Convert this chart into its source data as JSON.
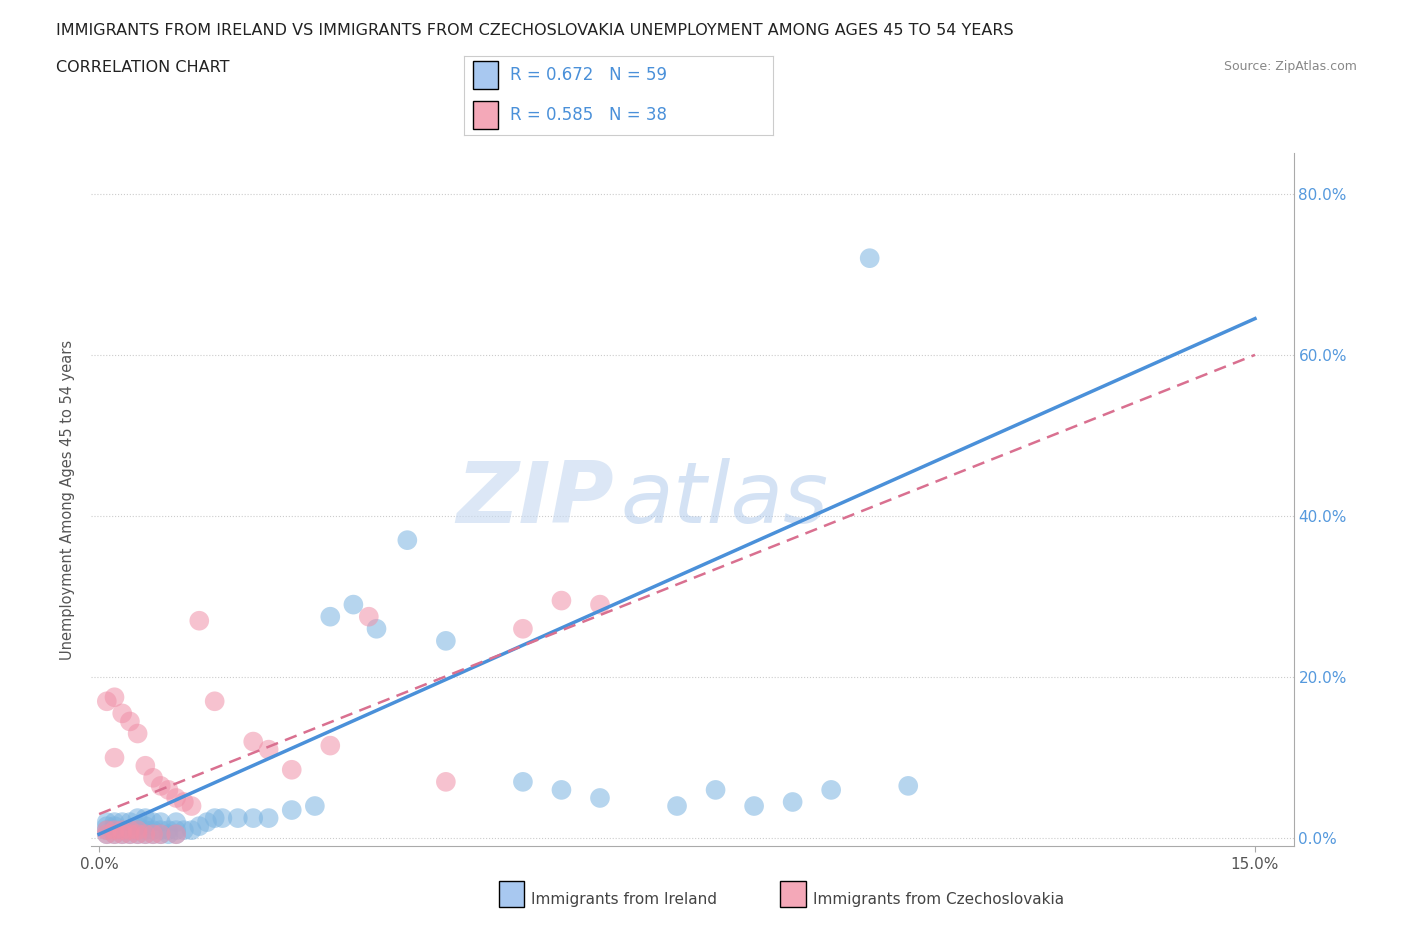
{
  "title_line1": "IMMIGRANTS FROM IRELAND VS IMMIGRANTS FROM CZECHOSLOVAKIA UNEMPLOYMENT AMONG AGES 45 TO 54 YEARS",
  "title_line2": "CORRELATION CHART",
  "source_text": "Source: ZipAtlas.com",
  "ylabel_label": "Unemployment Among Ages 45 to 54 years",
  "legend_ireland": {
    "R": "0.672",
    "N": "59",
    "color": "#a8c8f0",
    "label": "Immigrants from Ireland"
  },
  "legend_czech": {
    "R": "0.585",
    "N": "38",
    "color": "#f4a8b8",
    "label": "Immigrants from Czechoslovakia"
  },
  "watermark_zip": "ZIP",
  "watermark_atlas": "atlas",
  "ireland_color": "#7ab3e0",
  "czech_color": "#f090a8",
  "ireland_line_color": "#4a90d9",
  "czech_line_color": "#d97090",
  "grid_color": "#cccccc",
  "bg_color": "#ffffff",
  "scatter_alpha": 0.55,
  "scatter_size": 200,
  "ireland_line_x": [
    0.0,
    0.15
  ],
  "ireland_line_y": [
    0.005,
    0.645
  ],
  "czech_line_x": [
    0.0,
    0.15
  ],
  "czech_line_y": [
    0.03,
    0.6
  ],
  "xlim": [
    -0.001,
    0.155
  ],
  "ylim": [
    -0.01,
    0.85
  ],
  "yticks": [
    0.0,
    0.2,
    0.4,
    0.6,
    0.8
  ],
  "ytick_labels": [
    "0.0%",
    "20.0%",
    "40.0%",
    "60.0%",
    "80.0%"
  ],
  "xticks": [
    0.0,
    0.15
  ],
  "xtick_labels": [
    "0.0%",
    "15.0%"
  ],
  "ireland_x": [
    0.001,
    0.001,
    0.001,
    0.001,
    0.002,
    0.002,
    0.002,
    0.002,
    0.003,
    0.003,
    0.003,
    0.004,
    0.004,
    0.004,
    0.005,
    0.005,
    0.005,
    0.005,
    0.006,
    0.006,
    0.006,
    0.006,
    0.007,
    0.007,
    0.007,
    0.008,
    0.008,
    0.008,
    0.009,
    0.009,
    0.01,
    0.01,
    0.01,
    0.011,
    0.012,
    0.013,
    0.014,
    0.015,
    0.016,
    0.018,
    0.02,
    0.022,
    0.025,
    0.028,
    0.03,
    0.033,
    0.036,
    0.04,
    0.045,
    0.055,
    0.06,
    0.065,
    0.075,
    0.08,
    0.085,
    0.09,
    0.095,
    0.1,
    0.105
  ],
  "ireland_y": [
    0.005,
    0.01,
    0.015,
    0.02,
    0.005,
    0.01,
    0.015,
    0.02,
    0.005,
    0.01,
    0.02,
    0.005,
    0.01,
    0.02,
    0.005,
    0.01,
    0.015,
    0.025,
    0.005,
    0.01,
    0.015,
    0.025,
    0.005,
    0.01,
    0.02,
    0.005,
    0.01,
    0.02,
    0.005,
    0.01,
    0.005,
    0.01,
    0.02,
    0.01,
    0.01,
    0.015,
    0.02,
    0.025,
    0.025,
    0.025,
    0.025,
    0.025,
    0.035,
    0.04,
    0.275,
    0.29,
    0.26,
    0.37,
    0.245,
    0.07,
    0.06,
    0.05,
    0.04,
    0.06,
    0.04,
    0.045,
    0.06,
    0.72,
    0.065
  ],
  "czech_x": [
    0.001,
    0.001,
    0.001,
    0.002,
    0.002,
    0.002,
    0.002,
    0.003,
    0.003,
    0.003,
    0.004,
    0.004,
    0.004,
    0.005,
    0.005,
    0.005,
    0.006,
    0.006,
    0.007,
    0.007,
    0.008,
    0.008,
    0.009,
    0.01,
    0.01,
    0.011,
    0.012,
    0.013,
    0.015,
    0.02,
    0.022,
    0.025,
    0.03,
    0.035,
    0.045,
    0.055,
    0.06,
    0.065
  ],
  "czech_y": [
    0.005,
    0.01,
    0.17,
    0.005,
    0.01,
    0.1,
    0.175,
    0.005,
    0.01,
    0.155,
    0.005,
    0.01,
    0.145,
    0.005,
    0.01,
    0.13,
    0.005,
    0.09,
    0.005,
    0.075,
    0.005,
    0.065,
    0.06,
    0.005,
    0.05,
    0.045,
    0.04,
    0.27,
    0.17,
    0.12,
    0.11,
    0.085,
    0.115,
    0.275,
    0.07,
    0.26,
    0.295,
    0.29
  ]
}
